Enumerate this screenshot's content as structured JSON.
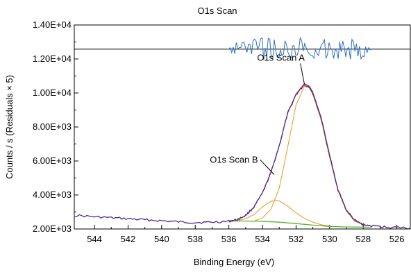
{
  "chart_data": {
    "type": "line",
    "title": "O1s Scan",
    "xlabel": "Binding Energy (eV)",
    "ylabel": "Counts / s  (Residuals × 5)",
    "xlim": [
      545.2,
      525.2
    ],
    "ylim": [
      2000,
      14000
    ],
    "x_reversed": true,
    "x_ticks": [
      544,
      542,
      540,
      538,
      536,
      534,
      532,
      530,
      528,
      526
    ],
    "y_ticks": [
      2000,
      4000,
      6000,
      8000,
      10000,
      12000,
      14000
    ],
    "y_tick_labels": [
      "2.00E+03",
      "4.00E+03",
      "6.00E+03",
      "8.00E+03",
      "1.00E+04",
      "1.20E+04",
      "1.40E+04"
    ],
    "grid": false,
    "residual_baseline": 12580,
    "colors": {
      "data": "#4b2a8a",
      "envelope": "#c23a3a",
      "components": "#e8a030",
      "background": "#58b030",
      "residuals": "#2a6fbf",
      "baseline": "#1a1a1a"
    },
    "annotations": [
      {
        "text": "O1s Scan A",
        "x": 532.9,
        "y": 11900,
        "arrow_to": [
          531.5,
          10500
        ]
      },
      {
        "text": "O1s Scan B",
        "x": 535.7,
        "y": 5900,
        "arrow_to": [
          533.3,
          5200
        ]
      }
    ],
    "series": [
      {
        "role": "data",
        "x": [
          545.2,
          544,
          543,
          542,
          541,
          540,
          539,
          538,
          537,
          536,
          535.5,
          535,
          534.5,
          534,
          533.5,
          533,
          532.5,
          532,
          531.5,
          531.2,
          531,
          530.5,
          530,
          529.5,
          529,
          528.5,
          528,
          527,
          526,
          525.2
        ],
        "y": [
          2800,
          2720,
          2660,
          2600,
          2540,
          2480,
          2420,
          2380,
          2400,
          2450,
          2550,
          2800,
          3300,
          4100,
          5300,
          6900,
          8800,
          9900,
          10500,
          10350,
          10000,
          8500,
          6300,
          4300,
          3100,
          2500,
          2250,
          2130,
          2090,
          2060
        ]
      },
      {
        "role": "component_A",
        "x": [
          534.5,
          534,
          533.5,
          533,
          532.5,
          532,
          531.5,
          531.2,
          531,
          530.5,
          530,
          529.5,
          529,
          528.5,
          528,
          527.5
        ],
        "y": [
          2460,
          2650,
          3150,
          4400,
          6800,
          9300,
          10400,
          10300,
          9900,
          8400,
          6200,
          4250,
          3050,
          2450,
          2250,
          2170
        ]
      },
      {
        "role": "component_B",
        "x": [
          535.5,
          535,
          534.5,
          534,
          533.5,
          533.2,
          533,
          532.5,
          532,
          531.5,
          531,
          530.5,
          530
        ],
        "y": [
          2500,
          2600,
          2850,
          3300,
          3620,
          3680,
          3650,
          3350,
          2950,
          2620,
          2400,
          2250,
          2180
        ]
      },
      {
        "role": "envelope",
        "x": [
          536,
          535.5,
          535,
          534.5,
          534,
          533.5,
          533,
          532.5,
          532,
          531.5,
          531.2,
          531,
          530.5,
          530,
          529.5,
          529,
          528.5,
          528,
          527.5
        ],
        "y": [
          2480,
          2540,
          2790,
          3300,
          4150,
          5300,
          6900,
          8800,
          9950,
          10550,
          10400,
          10050,
          8550,
          6350,
          4300,
          3100,
          2500,
          2250,
          2170
        ]
      },
      {
        "role": "background",
        "x": [
          536,
          535,
          534,
          533,
          532,
          531,
          530,
          529,
          528,
          527.5
        ],
        "y": [
          2470,
          2470,
          2450,
          2400,
          2320,
          2230,
          2150,
          2120,
          2110,
          2100
        ]
      }
    ],
    "residuals": {
      "x_range": [
        536.1,
        527.5
      ],
      "amplitude": 700
    }
  }
}
